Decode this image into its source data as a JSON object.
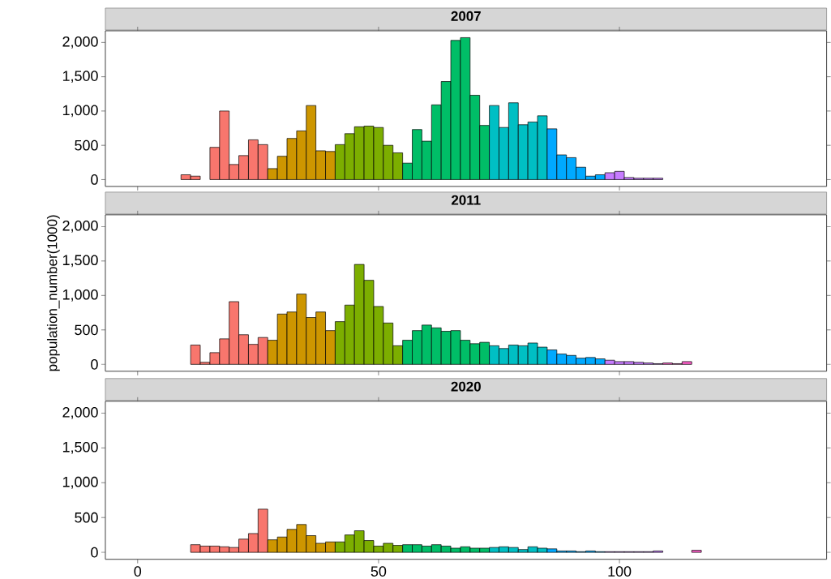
{
  "chart_data": [
    {
      "type": "histogram",
      "title": "2007",
      "tick_labels": "y",
      "bins": [
        1,
        3,
        5,
        7,
        9,
        11,
        13,
        15,
        17,
        19,
        21,
        23,
        25,
        27,
        29,
        31,
        33,
        35,
        37,
        39,
        41,
        43,
        45,
        47,
        49,
        51,
        53,
        55,
        57,
        59,
        61,
        63,
        65,
        67,
        69,
        71,
        73,
        75,
        77,
        79,
        81,
        83,
        85,
        87,
        89,
        91,
        93,
        95,
        97,
        99,
        101,
        103,
        105,
        107,
        109,
        111,
        113,
        115,
        117,
        119,
        121,
        123,
        125,
        127,
        129,
        131,
        133,
        135,
        137,
        139
      ],
      "values": [
        null,
        null,
        null,
        null,
        70,
        50,
        null,
        470,
        1000,
        220,
        350,
        580,
        510,
        160,
        340,
        600,
        710,
        1080,
        420,
        410,
        510,
        670,
        770,
        780,
        760,
        500,
        390,
        240,
        730,
        560,
        1090,
        1430,
        2030,
        2070,
        1230,
        790,
        1080,
        760,
        1120,
        800,
        840,
        930,
        740,
        360,
        320,
        180,
        50,
        70,
        100,
        120,
        30,
        20,
        20,
        20,
        null,
        null,
        null,
        null,
        null,
        null,
        null,
        null,
        null,
        null,
        null,
        null,
        null,
        null,
        null
      ],
      "colors": [
        "#7f7f7f",
        "#7f7f7f",
        "#7f7f7f",
        "#7f7f7f",
        "#f8766d",
        "#f8766d",
        "#f8766d",
        "#f8766d",
        "#f8766d",
        "#f8766d",
        "#f8766d",
        "#f8766d",
        "#f8766d",
        "#cd9600",
        "#cd9600",
        "#cd9600",
        "#cd9600",
        "#cd9600",
        "#cd9600",
        "#cd9600",
        "#7cae00",
        "#7cae00",
        "#7cae00",
        "#7cae00",
        "#7cae00",
        "#7cae00",
        "#7cae00",
        "#00be67",
        "#00be67",
        "#00be67",
        "#00be67",
        "#00be67",
        "#00be67",
        "#00be67",
        "#00be67",
        "#00be67",
        "#00bfc4",
        "#00bfc4",
        "#00bfc4",
        "#00bfc4",
        "#00bfc4",
        "#00bfc4",
        "#00a9ff",
        "#00a9ff",
        "#00a9ff",
        "#00a9ff",
        "#00a9ff",
        "#00a9ff",
        "#c77cff",
        "#c77cff",
        "#c77cff",
        "#c77cff",
        "#c77cff",
        "#c77cff",
        "#7f7f7f",
        "#7f7f7f",
        "#7f7f7f",
        "#7f7f7f",
        "#7f7f7f",
        "#7f7f7f",
        "#7f7f7f",
        "#7f7f7f",
        "#7f7f7f",
        "#7f7f7f",
        "#7f7f7f",
        "#7f7f7f",
        "#7f7f7f",
        "#7f7f7f",
        "#7f7f7f"
      ],
      "xlim": [
        -6.7,
        143
      ],
      "ylim": [
        -100,
        2170
      ],
      "xticks": [
        0,
        50,
        100
      ],
      "yticks": [
        0,
        500,
        {
          "value": 1000,
          "label": "1,000"
        },
        {
          "value": 1500,
          "label": "1,500"
        },
        {
          "value": 2000,
          "label": "2,000"
        }
      ]
    },
    {
      "type": "histogram",
      "title": "2011",
      "ylabel": "population_number(1000)",
      "tick_labels": "y",
      "bins": [
        1,
        3,
        5,
        7,
        9,
        11,
        13,
        15,
        17,
        19,
        21,
        23,
        25,
        27,
        29,
        31,
        33,
        35,
        37,
        39,
        41,
        43,
        45,
        47,
        49,
        51,
        53,
        55,
        57,
        59,
        61,
        63,
        65,
        67,
        69,
        71,
        73,
        75,
        77,
        79,
        81,
        83,
        85,
        87,
        89,
        91,
        93,
        95,
        97,
        99,
        101,
        103,
        105,
        107,
        109,
        111,
        113,
        115,
        117,
        119,
        121,
        123,
        125,
        127,
        129,
        131,
        133,
        135,
        137,
        139
      ],
      "values": [
        null,
        null,
        null,
        null,
        null,
        280,
        30,
        170,
        370,
        910,
        430,
        290,
        390,
        350,
        730,
        760,
        1020,
        680,
        760,
        490,
        620,
        860,
        1450,
        1220,
        840,
        600,
        270,
        350,
        490,
        570,
        530,
        480,
        490,
        350,
        300,
        320,
        270,
        230,
        280,
        270,
        310,
        250,
        210,
        150,
        130,
        90,
        100,
        80,
        60,
        40,
        40,
        30,
        20,
        10,
        20,
        10,
        40,
        null,
        null,
        null,
        null,
        null,
        null,
        null,
        null,
        null,
        null,
        null,
        null
      ],
      "colors": [
        "#7f7f7f",
        "#7f7f7f",
        "#7f7f7f",
        "#7f7f7f",
        "#7f7f7f",
        "#f8766d",
        "#f8766d",
        "#f8766d",
        "#f8766d",
        "#f8766d",
        "#f8766d",
        "#f8766d",
        "#f8766d",
        "#cd9600",
        "#cd9600",
        "#cd9600",
        "#cd9600",
        "#cd9600",
        "#cd9600",
        "#cd9600",
        "#7cae00",
        "#7cae00",
        "#7cae00",
        "#7cae00",
        "#7cae00",
        "#7cae00",
        "#7cae00",
        "#00be67",
        "#00be67",
        "#00be67",
        "#00be67",
        "#00be67",
        "#00be67",
        "#00be67",
        "#00be67",
        "#00be67",
        "#00bfc4",
        "#00bfc4",
        "#00bfc4",
        "#00bfc4",
        "#00bfc4",
        "#00bfc4",
        "#00a9ff",
        "#00a9ff",
        "#00a9ff",
        "#00a9ff",
        "#00a9ff",
        "#00a9ff",
        "#c77cff",
        "#c77cff",
        "#c77cff",
        "#c77cff",
        "#c77cff",
        "#c77cff",
        "#ff61cc",
        "#ff61cc",
        "#ff61cc",
        "#7f7f7f",
        "#7f7f7f",
        "#7f7f7f",
        "#7f7f7f",
        "#7f7f7f",
        "#7f7f7f",
        "#7f7f7f",
        "#7f7f7f",
        "#7f7f7f",
        "#7f7f7f",
        "#7f7f7f",
        "#7f7f7f"
      ],
      "xlim": [
        -6.7,
        143
      ],
      "ylim": [
        -100,
        2170
      ],
      "xticks": [
        0,
        50,
        100
      ],
      "yticks": [
        0,
        500,
        {
          "value": 1000,
          "label": "1,000"
        },
        {
          "value": 1500,
          "label": "1,500"
        },
        {
          "value": 2000,
          "label": "2,000"
        }
      ]
    },
    {
      "type": "histogram",
      "title": "2020",
      "bins": [
        1,
        3,
        5,
        7,
        9,
        11,
        13,
        15,
        17,
        19,
        21,
        23,
        25,
        27,
        29,
        31,
        33,
        35,
        37,
        39,
        41,
        43,
        45,
        47,
        49,
        51,
        53,
        55,
        57,
        59,
        61,
        63,
        65,
        67,
        69,
        71,
        73,
        75,
        77,
        79,
        81,
        83,
        85,
        87,
        89,
        91,
        93,
        95,
        97,
        99,
        101,
        103,
        105,
        107,
        109,
        111,
        113,
        115,
        117,
        119,
        121,
        123,
        125,
        127,
        129,
        131,
        133,
        135,
        137,
        139
      ],
      "values": [
        null,
        null,
        null,
        null,
        null,
        110,
        90,
        90,
        80,
        70,
        190,
        270,
        620,
        180,
        220,
        330,
        400,
        240,
        130,
        150,
        150,
        250,
        310,
        170,
        90,
        130,
        100,
        110,
        110,
        90,
        110,
        90,
        60,
        80,
        60,
        60,
        70,
        80,
        70,
        40,
        80,
        60,
        50,
        20,
        20,
        10,
        20,
        10,
        10,
        10,
        10,
        10,
        10,
        20,
        null,
        null,
        null,
        30,
        null,
        null,
        null,
        null,
        null,
        null,
        null,
        null,
        null,
        null,
        null
      ],
      "colors": [
        "#7f7f7f",
        "#7f7f7f",
        "#7f7f7f",
        "#7f7f7f",
        "#7f7f7f",
        "#f8766d",
        "#f8766d",
        "#f8766d",
        "#f8766d",
        "#f8766d",
        "#f8766d",
        "#f8766d",
        "#f8766d",
        "#cd9600",
        "#cd9600",
        "#cd9600",
        "#cd9600",
        "#cd9600",
        "#cd9600",
        "#cd9600",
        "#7cae00",
        "#7cae00",
        "#7cae00",
        "#7cae00",
        "#7cae00",
        "#7cae00",
        "#7cae00",
        "#00be67",
        "#00be67",
        "#00be67",
        "#00be67",
        "#00be67",
        "#00be67",
        "#00be67",
        "#00be67",
        "#00be67",
        "#00bfc4",
        "#00bfc4",
        "#00bfc4",
        "#00bfc4",
        "#00bfc4",
        "#00bfc4",
        "#00a9ff",
        "#00a9ff",
        "#00a9ff",
        "#00a9ff",
        "#00a9ff",
        "#00a9ff",
        "#c77cff",
        "#c77cff",
        "#c77cff",
        "#c77cff",
        "#c77cff",
        "#c77cff",
        "#7f7f7f",
        "#7f7f7f",
        "#7f7f7f",
        "#ff61cc",
        "#7f7f7f",
        "#7f7f7f",
        "#7f7f7f",
        "#7f7f7f",
        "#7f7f7f",
        "#7f7f7f",
        "#7f7f7f",
        "#7f7f7f",
        "#7f7f7f",
        "#7f7f7f",
        "#7f7f7f"
      ],
      "xlim": [
        -6.7,
        143
      ],
      "ylim": [
        -100,
        2170
      ],
      "xticks": [
        0,
        50,
        100
      ],
      "yticks": [
        0,
        500,
        {
          "value": 1000,
          "label": "1,000"
        },
        {
          "value": 1500,
          "label": "1,500"
        },
        {
          "value": 2000,
          "label": "2,000"
        }
      ]
    }
  ]
}
